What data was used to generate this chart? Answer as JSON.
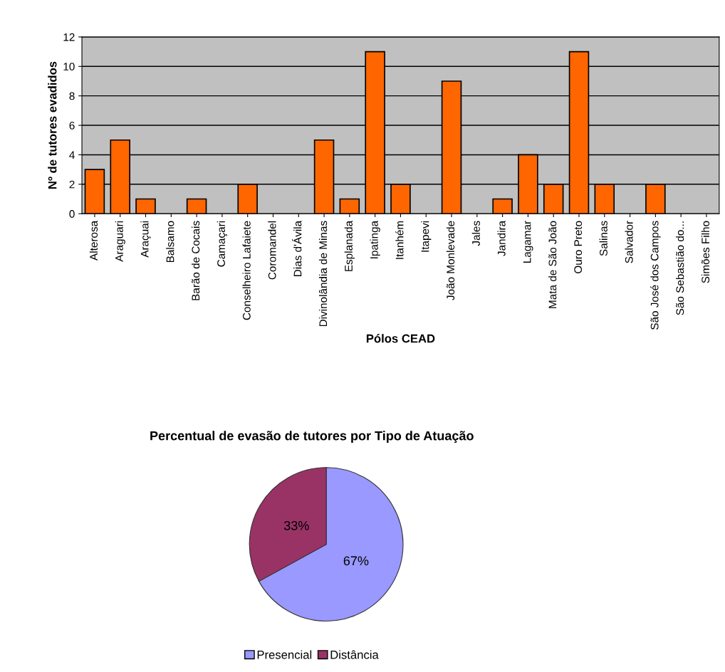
{
  "chart_data": [
    {
      "type": "bar",
      "xlabel": "Pólos CEAD",
      "ylabel": "Nº de tutores evadidos",
      "categories": [
        "Alterosa",
        "Araguari",
        "Araçuai",
        "Balsamo",
        "Barão de Cocais",
        "Camaçari",
        "Conselheiro Lafaiete",
        "Coromandel",
        "Dias d'Ávila",
        "Divinolândia de Minas",
        "Esplanada",
        "Ipatinga",
        "Itanhém",
        "Itapevi",
        "João Monlevade",
        "Jales",
        "Jandira",
        "Lagamar",
        "Mata de São João",
        "Ouro Preto",
        "Salinas",
        "Salvador",
        "São José dos Campos",
        "São Sebastião do...",
        "Simões Filho"
      ],
      "values": [
        3,
        5,
        1,
        0,
        1,
        0,
        2,
        0,
        0,
        5,
        1,
        11,
        2,
        0,
        9,
        0,
        1,
        4,
        2,
        11,
        2,
        0,
        2,
        0,
        0
      ],
      "color": "#ff6600",
      "ylim": [
        0,
        12
      ],
      "yticks": [
        0,
        2,
        4,
        6,
        8,
        10,
        12
      ],
      "grid": "y"
    },
    {
      "type": "pie",
      "title": "Percentual de evasão de tutores por Tipo de Atuação",
      "categories": [
        "Presencial",
        "Distância"
      ],
      "values": [
        67,
        33
      ],
      "colors": [
        "#9999ff",
        "#993366"
      ],
      "value_labels": [
        "67%",
        "33%"
      ],
      "legend": "bottom"
    }
  ]
}
